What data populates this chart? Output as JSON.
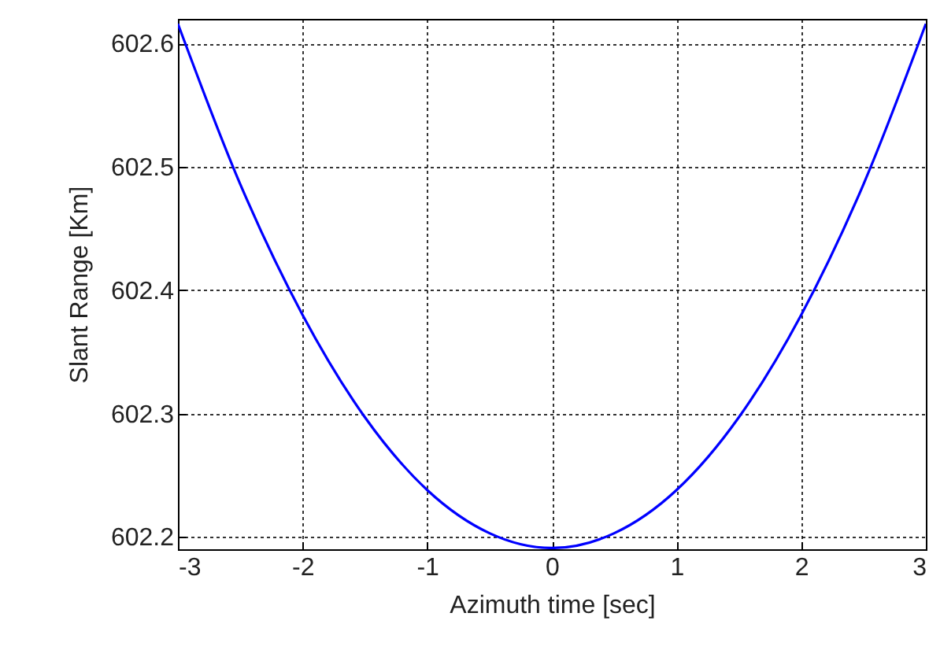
{
  "chart_data": {
    "type": "line",
    "xlabel": "Azimuth time [sec]",
    "ylabel": "Slant Range [Km]",
    "x": [
      -3,
      -2.5,
      -2,
      -1.5,
      -1,
      -0.5,
      0,
      0.5,
      1,
      1.5,
      2,
      2.5,
      3
    ],
    "series": [
      {
        "color": "#0000ff",
        "values": [
          602.616,
          602.486,
          602.38,
          602.297,
          602.238,
          602.203,
          602.191,
          602.203,
          602.238,
          602.297,
          602.38,
          602.486,
          602.616
        ]
      }
    ],
    "xlim": [
      -3,
      3
    ],
    "xticks": [
      -3,
      -2,
      -1,
      0,
      1,
      2,
      3
    ],
    "ylim": [
      602.19,
      602.62
    ],
    "yticks": [
      {
        "value": 602.2,
        "label": "602.2"
      },
      {
        "value": 602.3,
        "label": "602.3"
      },
      {
        "value": 602.4,
        "label": "602.4"
      },
      {
        "value": 602.5,
        "label": "602.5"
      },
      {
        "value": 602.6,
        "label": "602.6"
      }
    ],
    "grid": true,
    "marker": "none",
    "line_style": "solid"
  }
}
